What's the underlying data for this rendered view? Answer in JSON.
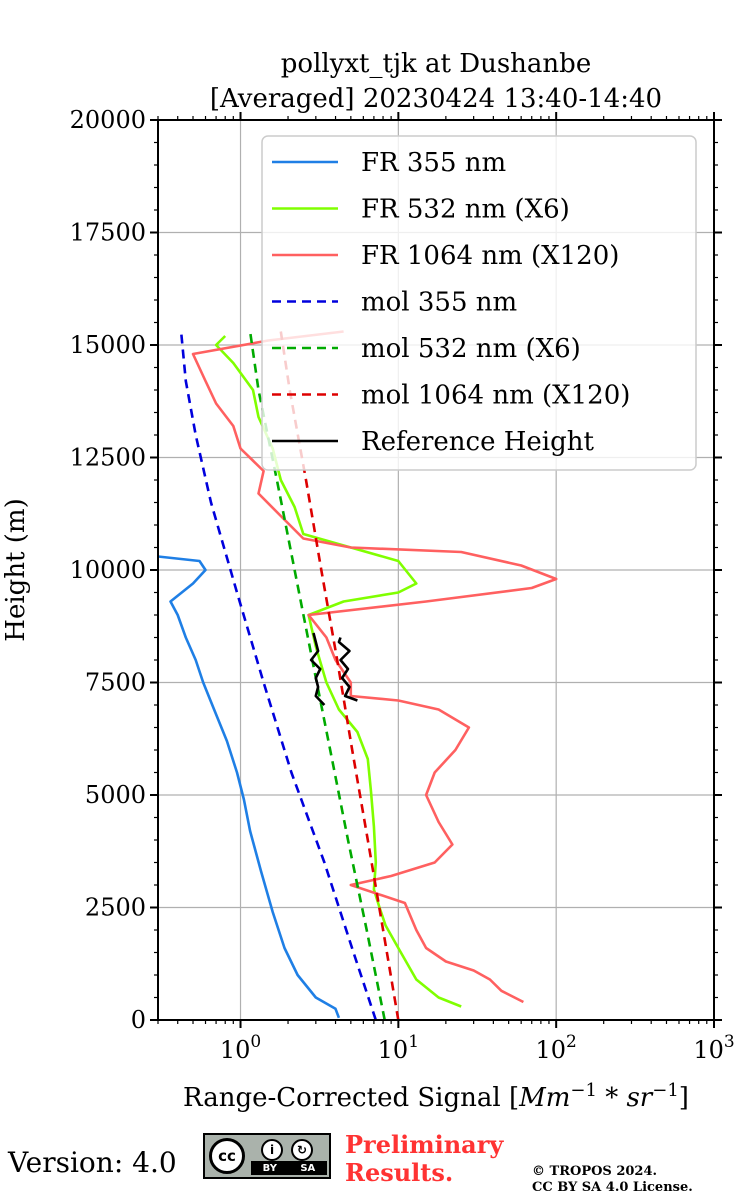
{
  "chart_data": {
    "type": "line",
    "title": [
      "pollyxt_tjk at Dushanbe",
      "[Averaged] 20230424 13:40-14:40"
    ],
    "xlabel": "Range-Corrected Signal [",
    "xlabel_math": "Mm",
    "xlabel_sup1": "−1",
    "xlabel_mid": " * ",
    "xlabel_math2": "sr",
    "xlabel_sup2": "−1",
    "xlabel_end": "]",
    "ylabel": "Height (m)",
    "xscale": "log",
    "xlim": [
      0.3,
      1000
    ],
    "ylim": [
      0,
      20000
    ],
    "xticks": [
      {
        "value": 1,
        "base": "10",
        "exp": "0"
      },
      {
        "value": 10,
        "base": "10",
        "exp": "1"
      },
      {
        "value": 100,
        "base": "10",
        "exp": "2"
      },
      {
        "value": 1000,
        "base": "10",
        "exp": "3"
      }
    ],
    "yticks": [
      0,
      2500,
      5000,
      7500,
      10000,
      12500,
      15000,
      17500,
      20000
    ],
    "ytick_labels": [
      "0",
      "2500",
      "5000",
      "7500",
      "10000",
      "12500",
      "15000",
      "17500",
      "20000"
    ],
    "grid": true,
    "legend_position": "top-right",
    "series": [
      {
        "name": "FR 355 nm",
        "color": "#1f7fe5",
        "style": "solid",
        "points": [
          [
            4.2,
            50
          ],
          [
            4.0,
            250
          ],
          [
            3.0,
            500
          ],
          [
            2.3,
            1000
          ],
          [
            1.9,
            1600
          ],
          [
            1.6,
            2400
          ],
          [
            1.35,
            3300
          ],
          [
            1.15,
            4200
          ],
          [
            1.05,
            4900
          ],
          [
            0.95,
            5500
          ],
          [
            0.82,
            6200
          ],
          [
            0.68,
            6900
          ],
          [
            0.58,
            7500
          ],
          [
            0.52,
            8000
          ],
          [
            0.45,
            8500
          ],
          [
            0.4,
            9000
          ],
          [
            0.36,
            9300
          ],
          [
            0.5,
            9700
          ],
          [
            0.6,
            10000
          ],
          [
            0.55,
            10200
          ],
          [
            0.3,
            10300
          ]
        ]
      },
      {
        "name": "FR 532 nm (X6)",
        "color": "#80ff00",
        "style": "solid",
        "points": [
          [
            25,
            300
          ],
          [
            18,
            500
          ],
          [
            13,
            900
          ],
          [
            10,
            1600
          ],
          [
            8.3,
            2100
          ],
          [
            7.6,
            2500
          ],
          [
            7.0,
            2900
          ],
          [
            7.2,
            3500
          ],
          [
            7.0,
            4300
          ],
          [
            6.7,
            5100
          ],
          [
            6.4,
            5800
          ],
          [
            5.5,
            6400
          ],
          [
            4.2,
            6900
          ],
          [
            3.5,
            7500
          ],
          [
            3.0,
            8300
          ],
          [
            2.7,
            9000
          ],
          [
            4.5,
            9300
          ],
          [
            10,
            9500
          ],
          [
            13,
            9700
          ],
          [
            10,
            10200
          ],
          [
            5,
            10500
          ],
          [
            2.5,
            10800
          ],
          [
            2.2,
            11400
          ],
          [
            1.8,
            12000
          ],
          [
            1.6,
            12700
          ],
          [
            1.3,
            13400
          ],
          [
            1.2,
            14000
          ],
          [
            0.9,
            14600
          ],
          [
            0.7,
            15000
          ],
          [
            0.8,
            15200
          ]
        ]
      },
      {
        "name": "FR 1064 nm (X120)",
        "color": "#ff6060",
        "style": "solid",
        "points": [
          [
            62,
            400
          ],
          [
            45,
            650
          ],
          [
            38,
            900
          ],
          [
            30,
            1100
          ],
          [
            20,
            1300
          ],
          [
            15,
            1600
          ],
          [
            13,
            2000
          ],
          [
            11,
            2600
          ],
          [
            5,
            3000
          ],
          [
            9,
            3200
          ],
          [
            17,
            3500
          ],
          [
            22,
            3900
          ],
          [
            18,
            4400
          ],
          [
            15,
            5000
          ],
          [
            17,
            5500
          ],
          [
            23,
            6000
          ],
          [
            28,
            6500
          ],
          [
            18,
            6900
          ],
          [
            10,
            7100
          ],
          [
            5,
            7200
          ],
          [
            5,
            7500
          ],
          [
            4,
            8000
          ],
          [
            3.5,
            8500
          ],
          [
            2.7,
            9000
          ],
          [
            15,
            9300
          ],
          [
            70,
            9600
          ],
          [
            100,
            9800
          ],
          [
            60,
            10100
          ],
          [
            25,
            10400
          ],
          [
            5,
            10500
          ],
          [
            2.5,
            10700
          ],
          [
            1.8,
            11200
          ],
          [
            1.3,
            11700
          ],
          [
            1.4,
            12200
          ],
          [
            1.0,
            12700
          ],
          [
            0.9,
            13200
          ],
          [
            0.7,
            13700
          ],
          [
            0.6,
            14200
          ],
          [
            0.5,
            14800
          ],
          [
            1.5,
            15100
          ],
          [
            4.5,
            15300
          ]
        ]
      },
      {
        "name": "mol 355 nm",
        "color": "#0000dd",
        "style": "dashed",
        "points": [
          [
            7.2,
            0
          ],
          [
            5.2,
            1500
          ],
          [
            3.4,
            3500
          ],
          [
            2.1,
            5500
          ],
          [
            1.4,
            7500
          ],
          [
            0.95,
            9500
          ],
          [
            0.65,
            11500
          ],
          [
            0.52,
            13000
          ],
          [
            0.45,
            14200
          ],
          [
            0.42,
            15300
          ]
        ]
      },
      {
        "name": "mol 532 nm (X6)",
        "color": "#00aa00",
        "style": "dashed",
        "points": [
          [
            8.2,
            0
          ],
          [
            6.3,
            2000
          ],
          [
            4.8,
            4000
          ],
          [
            3.7,
            6000
          ],
          [
            2.85,
            8000
          ],
          [
            2.2,
            10000
          ],
          [
            1.7,
            12000
          ],
          [
            1.3,
            14000
          ],
          [
            1.15,
            15300
          ]
        ]
      },
      {
        "name": "mol 1064 nm (X120)",
        "color": "#dd0000",
        "style": "dashed",
        "points": [
          [
            10,
            0
          ],
          [
            8.0,
            2000
          ],
          [
            6.4,
            4000
          ],
          [
            5.1,
            6000
          ],
          [
            4.1,
            8000
          ],
          [
            3.25,
            10000
          ],
          [
            2.6,
            12000
          ],
          [
            2.05,
            14000
          ],
          [
            1.8,
            15300
          ]
        ]
      },
      {
        "name": "Reference Height",
        "color": "#000000",
        "style": "solid",
        "points": [
          [
            3.4,
            7000
          ],
          [
            3.0,
            7200
          ],
          [
            3.1,
            7400
          ],
          [
            3.0,
            7600
          ],
          [
            3.2,
            7800
          ],
          [
            2.8,
            8000
          ],
          [
            3.1,
            8200
          ],
          [
            3.0,
            8400
          ],
          [
            2.9,
            8600
          ]
        ]
      },
      {
        "name": "Reference Height",
        "color": "#000000",
        "style": "solid",
        "points": [
          [
            5.5,
            7100
          ],
          [
            4.6,
            7200
          ],
          [
            4.9,
            7400
          ],
          [
            4.4,
            7600
          ],
          [
            4.8,
            7800
          ],
          [
            4.3,
            8000
          ],
          [
            4.9,
            8200
          ],
          [
            4.2,
            8400
          ],
          [
            4.3,
            8500
          ]
        ]
      }
    ]
  },
  "footer": {
    "version": "Version: 4.0",
    "cc_label": "cc",
    "cc_by": "BY",
    "cc_sa": "SA",
    "preliminary": [
      "Preliminary",
      "Results."
    ],
    "copyright": [
      "© TROPOS 2024.",
      "CC BY SA 4.0 License."
    ]
  }
}
